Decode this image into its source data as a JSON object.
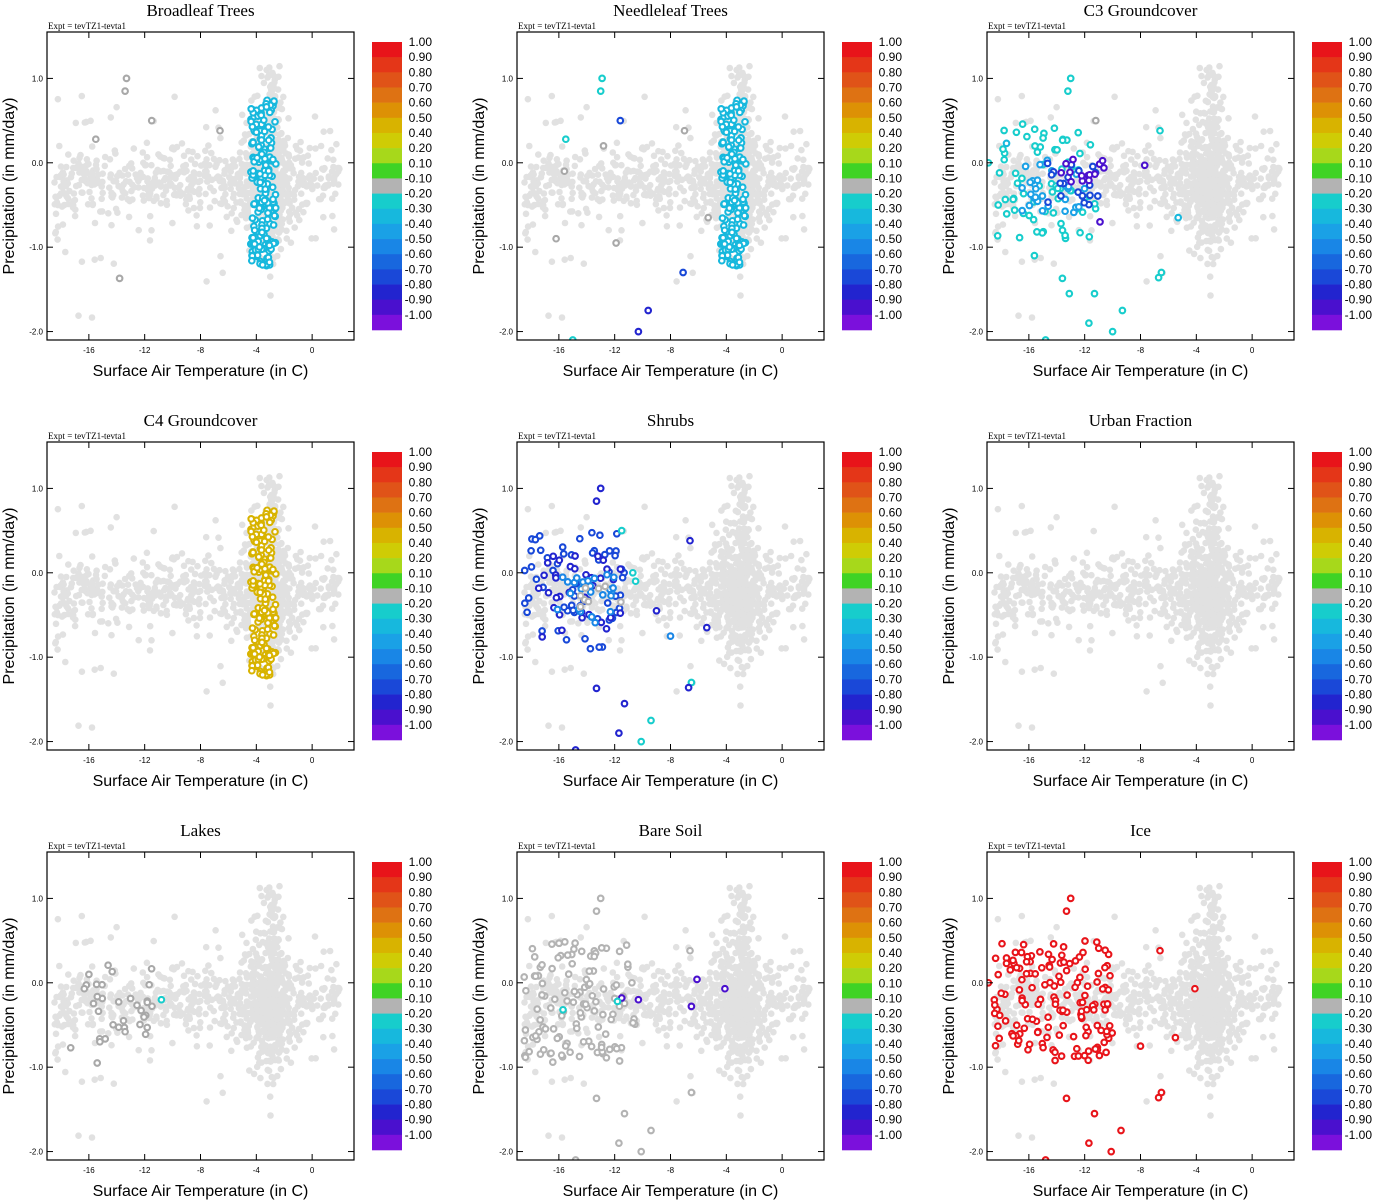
{
  "figure": {
    "expt_label": "Expt = tevTZ1-tevta1",
    "xlabel": "Surface Air Temperature (in C)",
    "ylabel": "Precipitation (in mm/day)"
  },
  "chart_data": {
    "type": "scatter",
    "xlim": [
      -19,
      3
    ],
    "ylim": [
      -2.1,
      1.55
    ],
    "xticks": [
      -16,
      -12,
      -8,
      -4,
      0
    ],
    "xtick_labels": [
      "-16",
      "-12",
      "-8",
      "-4",
      "0"
    ],
    "yticks": [
      1.0,
      0.0,
      -1.0,
      -2.0
    ],
    "ytick_labels": [
      "1.0",
      "0.0",
      "-1.0",
      "-2.0"
    ],
    "colorbar": {
      "labels": [
        "1.00",
        "0.90",
        "0.80",
        "0.70",
        "0.60",
        "0.50",
        "0.40",
        "0.20",
        "0.10",
        "-0.10",
        "-0.20",
        "-0.30",
        "-0.40",
        "-0.50",
        "-0.60",
        "-0.70",
        "-0.80",
        "-0.90",
        "-1.00"
      ],
      "colors": [
        "#e8141a",
        "#e43618",
        "#e05318",
        "#de7213",
        "#dd9105",
        "#d8b300",
        "#cfcc05",
        "#a7d81b",
        "#3fd325",
        "#b3b3b3",
        "#17cdcc",
        "#17b8dd",
        "#1aa1e6",
        "#1986e6",
        "#1867de",
        "#1a48d8",
        "#2224cf",
        "#4a10ce",
        "#7b10dc"
      ]
    },
    "base_color": "#e1e1e1",
    "panels": [
      {
        "title": "Broadleaf Trees",
        "highlights": [
          {
            "color": "#17b8dd",
            "x_range": [
              -4.4,
              -2.6
            ],
            "y_range": [
              -1.22,
              0.75
            ],
            "n": 190,
            "seed": 11
          }
        ],
        "extras": [
          {
            "x": -13.3,
            "y": 1.0,
            "color": "#a8a8a8"
          },
          {
            "x": -13.4,
            "y": 0.85,
            "color": "#a8a8a8"
          },
          {
            "x": -11.5,
            "y": 0.5,
            "color": "#a8a8a8"
          },
          {
            "x": -15.5,
            "y": 0.28,
            "color": "#a8a8a8"
          },
          {
            "x": -13.8,
            "y": -1.37,
            "color": "#a8a8a8"
          },
          {
            "x": -6.6,
            "y": 0.38,
            "color": "#a8a8a8"
          }
        ]
      },
      {
        "title": "Needleleaf Trees",
        "highlights": [
          {
            "color": "#17b8dd",
            "x_range": [
              -4.4,
              -2.6
            ],
            "y_range": [
              -1.22,
              0.75
            ],
            "n": 190,
            "seed": 11
          }
        ],
        "extras": [
          {
            "x": -12.9,
            "y": 1.0,
            "color": "#17cdcc"
          },
          {
            "x": -13.0,
            "y": 0.85,
            "color": "#17cdcc"
          },
          {
            "x": -11.6,
            "y": 0.5,
            "color": "#1848d8"
          },
          {
            "x": -15.5,
            "y": 0.28,
            "color": "#17cdcc"
          },
          {
            "x": -7.1,
            "y": -1.3,
            "color": "#1848d8"
          },
          {
            "x": -9.6,
            "y": -1.75,
            "color": "#2224cf"
          },
          {
            "x": -10.3,
            "y": -2.0,
            "color": "#2224cf"
          },
          {
            "x": -15.0,
            "y": -2.1,
            "color": "#17cdcc"
          },
          {
            "x": -16.2,
            "y": -0.9,
            "color": "#a8a8a8"
          },
          {
            "x": -15.6,
            "y": -0.1,
            "color": "#a8a8a8"
          },
          {
            "x": -12.8,
            "y": 0.2,
            "color": "#a8a8a8"
          },
          {
            "x": -7.0,
            "y": 0.38,
            "color": "#a8a8a8"
          },
          {
            "x": -5.3,
            "y": -0.65,
            "color": "#a8a8a8"
          },
          {
            "x": -11.9,
            "y": -0.95,
            "color": "#a8a8a8"
          }
        ]
      },
      {
        "title": "C3 Groundcover",
        "highlights": [
          {
            "color": "#17cdcc",
            "x_range": [
              -18.5,
              -11.0
            ],
            "y_range": [
              -0.9,
              0.5
            ],
            "n": 70,
            "seed": 21
          },
          {
            "color": "#1aa1e6",
            "x_range": [
              -16.5,
              -11.5
            ],
            "y_range": [
              -0.6,
              0.1
            ],
            "n": 30,
            "seed": 22
          },
          {
            "color": "#1848d8",
            "x_range": [
              -15.0,
              -11.0
            ],
            "y_range": [
              -0.5,
              0.0
            ],
            "n": 20,
            "seed": 23
          },
          {
            "color": "#4a10ce",
            "x_range": [
              -14.0,
              -10.5
            ],
            "y_range": [
              -0.25,
              0.05
            ],
            "n": 14,
            "seed": 24
          }
        ],
        "extras": [
          {
            "x": -13.0,
            "y": 1.0,
            "color": "#17cdcc"
          },
          {
            "x": -13.2,
            "y": 0.85,
            "color": "#17cdcc"
          },
          {
            "x": -11.2,
            "y": 0.5,
            "color": "#a8a8a8"
          },
          {
            "x": -7.7,
            "y": -0.03,
            "color": "#4a10ce"
          },
          {
            "x": -10.9,
            "y": -0.7,
            "color": "#4a10ce"
          },
          {
            "x": -6.6,
            "y": 0.38,
            "color": "#17cdcc"
          },
          {
            "x": -6.5,
            "y": -1.3,
            "color": "#17cdcc"
          },
          {
            "x": -6.7,
            "y": -1.36,
            "color": "#17cdcc"
          },
          {
            "x": -5.3,
            "y": -0.65,
            "color": "#17b8dd"
          },
          {
            "x": -9.3,
            "y": -1.75,
            "color": "#17cdcc"
          },
          {
            "x": -10.0,
            "y": -2.0,
            "color": "#17cdcc"
          },
          {
            "x": -11.3,
            "y": -1.55,
            "color": "#17cdcc"
          },
          {
            "x": -13.1,
            "y": -1.55,
            "color": "#17cdcc"
          },
          {
            "x": -13.6,
            "y": -1.37,
            "color": "#17cdcc"
          },
          {
            "x": -11.7,
            "y": -1.9,
            "color": "#17cdcc"
          },
          {
            "x": -14.8,
            "y": -2.1,
            "color": "#17cdcc"
          },
          {
            "x": -18.9,
            "y": 0.0,
            "color": "#17cdcc"
          },
          {
            "x": -17.6,
            "y": 0.23,
            "color": "#17b8dd"
          },
          {
            "x": -18.2,
            "y": -0.5,
            "color": "#17cdcc"
          },
          {
            "x": -15.6,
            "y": -1.1,
            "color": "#17cdcc"
          }
        ]
      },
      {
        "title": "C4 Groundcover",
        "highlights": [
          {
            "color": "#d8b300",
            "x_range": [
              -4.4,
              -2.6
            ],
            "y_range": [
              -1.22,
              0.75
            ],
            "n": 190,
            "seed": 11
          }
        ],
        "extras": []
      },
      {
        "title": "Shrubs",
        "highlights": [
          {
            "color": "#1848d8",
            "x_range": [
              -18.5,
              -11.0
            ],
            "y_range": [
              -0.95,
              0.5
            ],
            "n": 60,
            "seed": 31
          },
          {
            "color": "#2224cf",
            "x_range": [
              -17.5,
              -11.5
            ],
            "y_range": [
              -0.8,
              0.3
            ],
            "n": 35,
            "seed": 32
          },
          {
            "color": "#1986e6",
            "x_range": [
              -16.5,
              -11.5
            ],
            "y_range": [
              -0.6,
              0.0
            ],
            "n": 25,
            "seed": 33
          },
          {
            "color": "#b3b3b3",
            "x_range": [
              -14.5,
              -11.5
            ],
            "y_range": [
              -0.45,
              -0.1
            ],
            "n": 8,
            "seed": 34
          }
        ],
        "extras": [
          {
            "x": -13.0,
            "y": 1.0,
            "color": "#2224cf"
          },
          {
            "x": -13.3,
            "y": 0.85,
            "color": "#2224cf"
          },
          {
            "x": -11.5,
            "y": 0.5,
            "color": "#17cdcc"
          },
          {
            "x": -6.6,
            "y": 0.38,
            "color": "#2224cf"
          },
          {
            "x": -6.5,
            "y": -1.3,
            "color": "#17cdcc"
          },
          {
            "x": -6.7,
            "y": -1.36,
            "color": "#2224cf"
          },
          {
            "x": -5.4,
            "y": -0.65,
            "color": "#2224cf"
          },
          {
            "x": -9.4,
            "y": -1.75,
            "color": "#17cdcc"
          },
          {
            "x": -10.1,
            "y": -2.0,
            "color": "#17cdcc"
          },
          {
            "x": -11.3,
            "y": -1.55,
            "color": "#2224cf"
          },
          {
            "x": -13.3,
            "y": -1.37,
            "color": "#2224cf"
          },
          {
            "x": -11.7,
            "y": -1.9,
            "color": "#2224cf"
          },
          {
            "x": -14.8,
            "y": -2.1,
            "color": "#2224cf"
          },
          {
            "x": -10.5,
            "y": -0.1,
            "color": "#17cdcc"
          },
          {
            "x": -10.7,
            "y": 0.0,
            "color": "#17cdcc"
          },
          {
            "x": -8.0,
            "y": -0.75,
            "color": "#1986e6"
          },
          {
            "x": -9.0,
            "y": -0.45,
            "color": "#2224cf"
          }
        ]
      },
      {
        "title": "Urban Fraction",
        "highlights": [],
        "extras": []
      },
      {
        "title": "Lakes",
        "highlights": [
          {
            "color": "#a8a8a8",
            "x_range": [
              -16.5,
              -11.0
            ],
            "y_range": [
              -0.7,
              0.25
            ],
            "n": 32,
            "seed": 41
          }
        ],
        "extras": [
          {
            "x": -10.8,
            "y": -0.2,
            "color": "#17cdcc"
          },
          {
            "x": -17.3,
            "y": -0.77,
            "color": "#a8a8a8"
          },
          {
            "x": -16.0,
            "y": 0.1,
            "color": "#a8a8a8"
          },
          {
            "x": -15.4,
            "y": -0.95,
            "color": "#a8a8a8"
          }
        ]
      },
      {
        "title": "Bare Soil",
        "highlights": [
          {
            "color": "#b3b3b3",
            "x_range": [
              -18.5,
              -10.5
            ],
            "y_range": [
              -0.95,
              0.5
            ],
            "n": 120,
            "seed": 51
          }
        ],
        "extras": [
          {
            "x": -13.0,
            "y": 1.0,
            "color": "#b3b3b3"
          },
          {
            "x": -13.3,
            "y": 0.85,
            "color": "#b3b3b3"
          },
          {
            "x": -6.1,
            "y": 0.04,
            "color": "#4a10ce"
          },
          {
            "x": -6.5,
            "y": -0.28,
            "color": "#4a10ce"
          },
          {
            "x": -4.1,
            "y": -0.07,
            "color": "#4a10ce"
          },
          {
            "x": -10.3,
            "y": -0.2,
            "color": "#4a10ce"
          },
          {
            "x": -11.5,
            "y": -0.18,
            "color": "#4a10ce"
          },
          {
            "x": -11.8,
            "y": -0.22,
            "color": "#17cdcc"
          },
          {
            "x": -15.7,
            "y": -0.32,
            "color": "#17cdcc"
          },
          {
            "x": -6.6,
            "y": 0.38,
            "color": "#b3b3b3"
          },
          {
            "x": -6.5,
            "y": -1.3,
            "color": "#b3b3b3"
          },
          {
            "x": -9.4,
            "y": -1.75,
            "color": "#b3b3b3"
          },
          {
            "x": -10.1,
            "y": -2.0,
            "color": "#b3b3b3"
          },
          {
            "x": -11.3,
            "y": -1.55,
            "color": "#b3b3b3"
          },
          {
            "x": -13.3,
            "y": -1.37,
            "color": "#b3b3b3"
          },
          {
            "x": -11.7,
            "y": -1.9,
            "color": "#b3b3b3"
          },
          {
            "x": -14.8,
            "y": -2.1,
            "color": "#b3b3b3"
          }
        ]
      },
      {
        "title": "Ice",
        "highlights": [
          {
            "color": "#e8141a",
            "x_range": [
              -18.5,
              -10.0
            ],
            "y_range": [
              -0.95,
              0.5
            ],
            "n": 150,
            "seed": 61
          }
        ],
        "extras": [
          {
            "x": -13.0,
            "y": 1.0,
            "color": "#e8141a"
          },
          {
            "x": -13.3,
            "y": 0.85,
            "color": "#e8141a"
          },
          {
            "x": -4.1,
            "y": -0.07,
            "color": "#e8141a"
          },
          {
            "x": -5.5,
            "y": -0.65,
            "color": "#e8141a"
          },
          {
            "x": -6.6,
            "y": 0.38,
            "color": "#e8141a"
          },
          {
            "x": -6.5,
            "y": -1.3,
            "color": "#e8141a"
          },
          {
            "x": -6.7,
            "y": -1.36,
            "color": "#e8141a"
          },
          {
            "x": -9.4,
            "y": -1.75,
            "color": "#e8141a"
          },
          {
            "x": -10.1,
            "y": -2.0,
            "color": "#e8141a"
          },
          {
            "x": -11.3,
            "y": -1.55,
            "color": "#e8141a"
          },
          {
            "x": -13.3,
            "y": -1.37,
            "color": "#e8141a"
          },
          {
            "x": -11.7,
            "y": -1.9,
            "color": "#e8141a"
          },
          {
            "x": -14.8,
            "y": -2.1,
            "color": "#e8141a"
          },
          {
            "x": -8.0,
            "y": -0.75,
            "color": "#e8141a"
          },
          {
            "x": -18.9,
            "y": 0.0,
            "color": "#e8141a"
          },
          {
            "x": -17.6,
            "y": 0.23,
            "color": "#e8141a"
          }
        ]
      }
    ]
  }
}
